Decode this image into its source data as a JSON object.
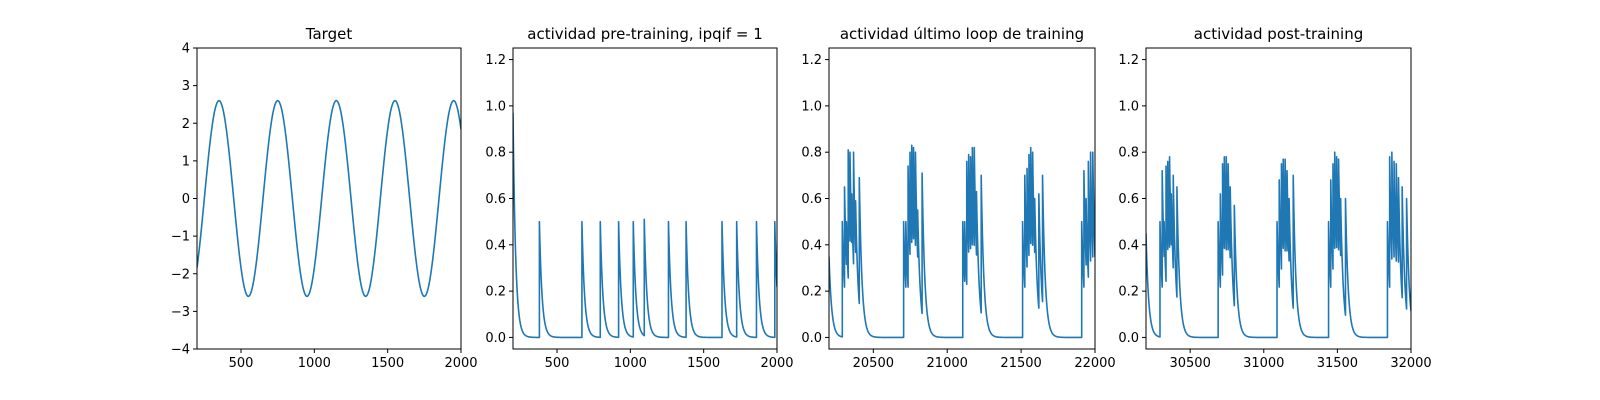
{
  "colors": {
    "line": "#1f77b4",
    "axis": "#000000",
    "background": "#ffffff"
  },
  "chart_data": [
    {
      "type": "line",
      "title": "Target",
      "xlabel": "",
      "ylabel": "",
      "xlim": [
        200,
        2000
      ],
      "ylim": [
        -4,
        4
      ],
      "xticks": [
        500,
        1000,
        1500,
        2000
      ],
      "xtick_labels": [
        "500",
        "1000",
        "1500",
        "2000"
      ],
      "yticks": [
        -4,
        -3,
        -2,
        -1,
        0,
        1,
        2,
        3,
        4
      ],
      "ytick_labels": [
        "−4",
        "−3",
        "−2",
        "−1",
        "0",
        "1",
        "2",
        "3",
        "4"
      ],
      "signal": {
        "kind": "sine",
        "amplitude": 2.6,
        "period": 400,
        "peak_at": 350
      }
    },
    {
      "type": "line",
      "title": "actividad pre-training, ipqif = 1",
      "xlabel": "",
      "ylabel": "",
      "xlim": [
        200,
        2000
      ],
      "ylim": [
        -0.05,
        1.25
      ],
      "xticks": [
        500,
        1000,
        1500,
        2000
      ],
      "xtick_labels": [
        "500",
        "1000",
        "1500",
        "2000"
      ],
      "yticks": [
        0.0,
        0.2,
        0.4,
        0.6,
        0.8,
        1.0,
        1.2
      ],
      "ytick_labels": [
        "0.0",
        "0.2",
        "0.4",
        "0.6",
        "0.8",
        "1.0",
        "1.2"
      ],
      "signal": {
        "kind": "spikes",
        "tau": 18,
        "baseline": 0,
        "start_value": 0.97,
        "spikes": [
          [
            380,
            0.5
          ],
          [
            670,
            0.5
          ],
          [
            795,
            0.5
          ],
          [
            920,
            0.5
          ],
          [
            1020,
            0.5
          ],
          [
            1095,
            0.51
          ],
          [
            1260,
            0.5
          ],
          [
            1380,
            0.5
          ],
          [
            1625,
            0.5
          ],
          [
            1725,
            0.5
          ],
          [
            1860,
            0.5
          ],
          [
            1985,
            0.5
          ]
        ]
      }
    },
    {
      "type": "line",
      "title": "actividad último loop de training",
      "xlabel": "",
      "ylabel": "",
      "xlim": [
        20200,
        22000
      ],
      "ylim": [
        -0.05,
        1.25
      ],
      "xticks": [
        20500,
        21000,
        21500,
        22000
      ],
      "xtick_labels": [
        "20500",
        "21000",
        "21500",
        "22000"
      ],
      "yticks": [
        0.0,
        0.2,
        0.4,
        0.6,
        0.8,
        1.0,
        1.2
      ],
      "ytick_labels": [
        "0.0",
        "0.2",
        "0.4",
        "0.6",
        "0.8",
        "1.0",
        "1.2"
      ],
      "signal": {
        "kind": "spikes",
        "tau": 18,
        "baseline": 0,
        "start_value": 0.35,
        "spikes": [
          [
            20290,
            0.5
          ],
          [
            20305,
            0.65
          ],
          [
            20318,
            0.5
          ],
          [
            20330,
            0.81
          ],
          [
            20342,
            0.8
          ],
          [
            20354,
            0.62
          ],
          [
            20366,
            0.8
          ],
          [
            20380,
            0.59
          ],
          [
            20405,
            0.69
          ],
          [
            20705,
            0.5
          ],
          [
            20720,
            0.5
          ],
          [
            20735,
            0.74
          ],
          [
            20748,
            0.8
          ],
          [
            20760,
            0.83
          ],
          [
            20772,
            0.82
          ],
          [
            20785,
            0.8
          ],
          [
            20800,
            0.55
          ],
          [
            20830,
            0.71
          ],
          [
            21105,
            0.5
          ],
          [
            21118,
            0.5
          ],
          [
            21132,
            0.76
          ],
          [
            21145,
            0.79
          ],
          [
            21158,
            0.78
          ],
          [
            21170,
            0.82
          ],
          [
            21183,
            0.82
          ],
          [
            21198,
            0.63
          ],
          [
            21230,
            0.7
          ],
          [
            21510,
            0.5
          ],
          [
            21525,
            0.7
          ],
          [
            21540,
            0.73
          ],
          [
            21553,
            0.79
          ],
          [
            21565,
            0.82
          ],
          [
            21578,
            0.8
          ],
          [
            21592,
            0.6
          ],
          [
            21620,
            0.62
          ],
          [
            21645,
            0.7
          ],
          [
            21910,
            0.5
          ],
          [
            21925,
            0.72
          ],
          [
            21940,
            0.6
          ],
          [
            21955,
            0.76
          ],
          [
            21970,
            0.8
          ],
          [
            21985,
            0.8
          ]
        ]
      }
    },
    {
      "type": "line",
      "title": "actividad post-training",
      "xlabel": "",
      "ylabel": "",
      "xlim": [
        30200,
        32000
      ],
      "ylim": [
        -0.05,
        1.25
      ],
      "xticks": [
        30500,
        31000,
        31500,
        32000
      ],
      "xtick_labels": [
        "30500",
        "31000",
        "31500",
        "32000"
      ],
      "yticks": [
        0.0,
        0.2,
        0.4,
        0.6,
        0.8,
        1.0,
        1.2
      ],
      "ytick_labels": [
        "0.0",
        "0.2",
        "0.4",
        "0.6",
        "0.8",
        "1.0",
        "1.2"
      ],
      "signal": {
        "kind": "spikes",
        "tau": 18,
        "baseline": 0,
        "start_value": 0.45,
        "spikes": [
          [
            30295,
            0.5
          ],
          [
            30310,
            0.72
          ],
          [
            30323,
            0.5
          ],
          [
            30336,
            0.74
          ],
          [
            30348,
            0.76
          ],
          [
            30360,
            0.78
          ],
          [
            30372,
            0.62
          ],
          [
            30385,
            0.7
          ],
          [
            30410,
            0.65
          ],
          [
            30690,
            0.5
          ],
          [
            30705,
            0.62
          ],
          [
            30720,
            0.75
          ],
          [
            30732,
            0.78
          ],
          [
            30745,
            0.78
          ],
          [
            30758,
            0.75
          ],
          [
            30772,
            0.65
          ],
          [
            30800,
            0.57
          ],
          [
            31090,
            0.5
          ],
          [
            31105,
            0.68
          ],
          [
            31120,
            0.75
          ],
          [
            31132,
            0.77
          ],
          [
            31145,
            0.77
          ],
          [
            31158,
            0.72
          ],
          [
            31172,
            0.6
          ],
          [
            31200,
            0.7
          ],
          [
            31440,
            0.5
          ],
          [
            31455,
            0.68
          ],
          [
            31470,
            0.75
          ],
          [
            31482,
            0.8
          ],
          [
            31495,
            0.78
          ],
          [
            31508,
            0.77
          ],
          [
            31522,
            0.6
          ],
          [
            31555,
            0.6
          ],
          [
            31840,
            0.5
          ],
          [
            31855,
            0.78
          ],
          [
            31870,
            0.8
          ],
          [
            31885,
            0.76
          ],
          [
            31900,
            0.75
          ],
          [
            31915,
            0.69
          ],
          [
            31940,
            0.65
          ],
          [
            31970,
            0.6
          ]
        ]
      }
    }
  ]
}
